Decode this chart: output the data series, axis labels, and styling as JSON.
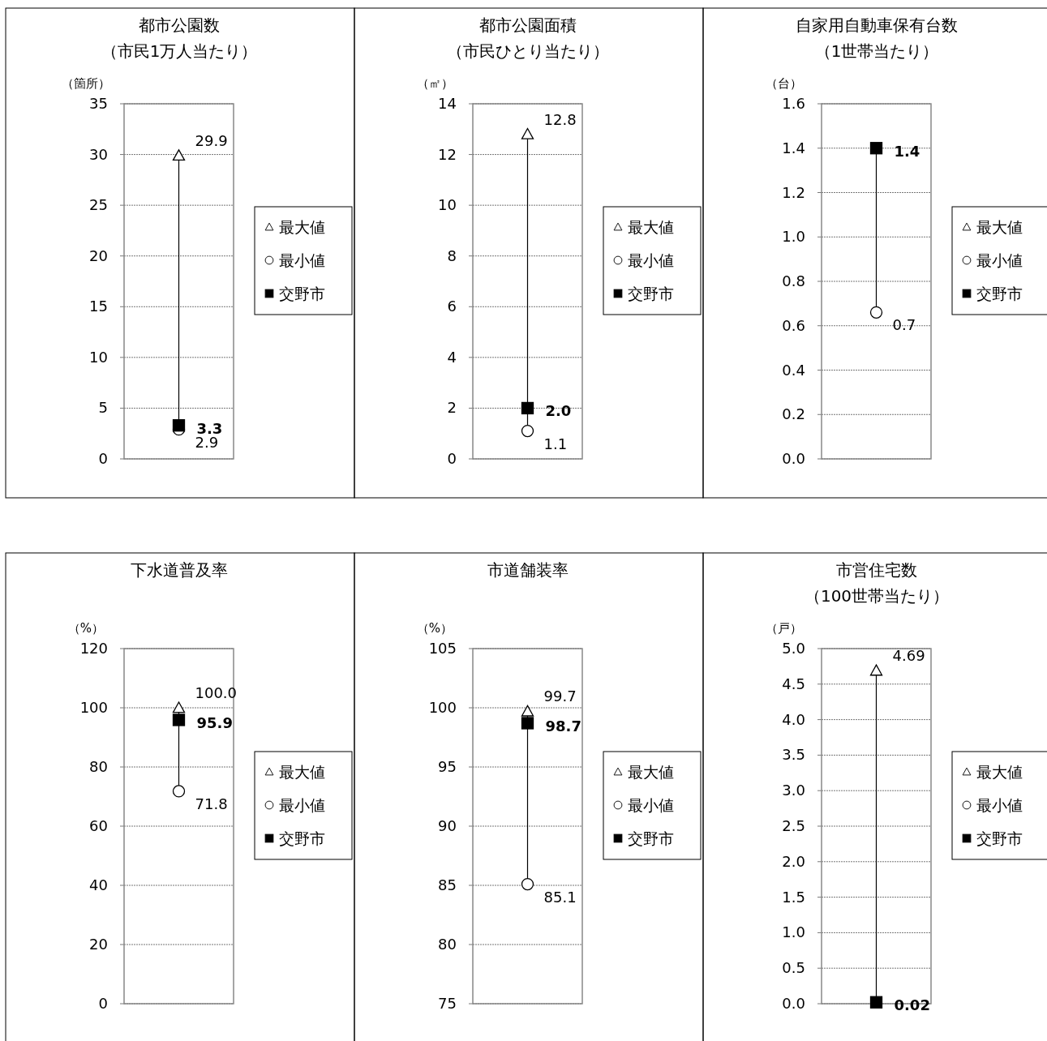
{
  "chart_data": [
    {
      "type": "scatter",
      "title": "都市公園数",
      "subtitle": "（市民1万人当たり）",
      "ylabel": "（箇所）",
      "categories": [
        null
      ],
      "ylim": [
        0,
        35
      ],
      "yticks": [
        0,
        5,
        10,
        15,
        20,
        25,
        30,
        35
      ],
      "grid": "y",
      "legend": "right",
      "series": [
        {
          "name": "最大値",
          "color": "#ffffff",
          "marker": "triangle",
          "values": [
            29.9
          ],
          "value_labels": [
            "29.9"
          ]
        },
        {
          "name": "最小値",
          "color": "#ffffff",
          "marker": "circle",
          "values": [
            2.9
          ],
          "value_labels": [
            "2.9"
          ]
        },
        {
          "name": "交野市",
          "color": "#000000",
          "marker": "square",
          "values": [
            3.3
          ],
          "value_labels": [
            "3.3"
          ]
        }
      ]
    },
    {
      "type": "scatter",
      "title": "都市公園面積",
      "subtitle": "（市民ひとり当たり）",
      "ylabel": "（㎡）",
      "categories": [
        null
      ],
      "ylim": [
        0,
        14
      ],
      "yticks": [
        0,
        2,
        4,
        6,
        8,
        10,
        12,
        14
      ],
      "grid": "y",
      "legend": "right",
      "series": [
        {
          "name": "最大値",
          "color": "#ffffff",
          "marker": "triangle",
          "values": [
            12.8
          ],
          "value_labels": [
            "12.8"
          ]
        },
        {
          "name": "最小値",
          "color": "#ffffff",
          "marker": "circle",
          "values": [
            1.1
          ],
          "value_labels": [
            "1.1"
          ]
        },
        {
          "name": "交野市",
          "color": "#000000",
          "marker": "square",
          "values": [
            2.0
          ],
          "value_labels": [
            "2.0"
          ]
        }
      ]
    },
    {
      "type": "scatter",
      "title": "自家用自動車保有台数",
      "subtitle": "（1世帯当たり）",
      "ylabel": "（台）",
      "categories": [
        null
      ],
      "ylim": [
        0,
        1.6
      ],
      "yticks": [
        {
          "value": 0,
          "label": "0.0"
        },
        0.2,
        0.4,
        0.6,
        0.8,
        {
          "value": 1,
          "label": "1.0"
        },
        1.2,
        1.4,
        1.6
      ],
      "grid": "y",
      "legend": "right",
      "series": [
        {
          "name": "最大値",
          "color": "#ffffff",
          "marker": "triangle",
          "values": [
            null
          ],
          "value_labels": [
            null
          ]
        },
        {
          "name": "最小値",
          "color": "#ffffff",
          "marker": "circle",
          "values": [
            0.66
          ],
          "value_labels": [
            "0.7"
          ]
        },
        {
          "name": "交野市",
          "color": "#000000",
          "marker": "square",
          "values": [
            1.4
          ],
          "value_labels": [
            "1.4"
          ]
        }
      ]
    },
    {
      "type": "scatter",
      "title": "下水道普及率",
      "ylabel": "（%）",
      "categories": [
        null
      ],
      "ylim": [
        0,
        120
      ],
      "yticks": [
        0,
        20,
        40,
        60,
        80,
        100,
        120
      ],
      "grid": "y",
      "legend": "right",
      "series": [
        {
          "name": "最大値",
          "color": "#ffffff",
          "marker": "triangle",
          "values": [
            100.0
          ],
          "value_labels": [
            "100.0"
          ]
        },
        {
          "name": "最小値",
          "color": "#ffffff",
          "marker": "circle",
          "values": [
            71.8
          ],
          "value_labels": [
            "71.8"
          ]
        },
        {
          "name": "交野市",
          "color": "#000000",
          "marker": "square",
          "values": [
            95.9
          ],
          "value_labels": [
            "95.9"
          ]
        }
      ]
    },
    {
      "type": "scatter",
      "title": "市道舗装率",
      "ylabel": "（%）",
      "categories": [
        null
      ],
      "ylim": [
        75,
        105
      ],
      "yticks": [
        75,
        80,
        85,
        90,
        95,
        100,
        105
      ],
      "grid": "y",
      "legend": "right",
      "series": [
        {
          "name": "最大値",
          "color": "#ffffff",
          "marker": "triangle",
          "values": [
            99.7
          ],
          "value_labels": [
            "99.7"
          ]
        },
        {
          "name": "最小値",
          "color": "#ffffff",
          "marker": "circle",
          "values": [
            85.1
          ],
          "value_labels": [
            "85.1"
          ]
        },
        {
          "name": "交野市",
          "color": "#000000",
          "marker": "square",
          "values": [
            98.7
          ],
          "value_labels": [
            "98.7"
          ]
        }
      ]
    },
    {
      "type": "scatter",
      "title": "市営住宅数",
      "subtitle": "（100世帯当たり）",
      "ylabel": "（戸）",
      "categories": [
        null
      ],
      "ylim": [
        0,
        5
      ],
      "yticks": [
        {
          "value": 0,
          "label": "0.0"
        },
        0.5,
        {
          "value": 1,
          "label": "1.0"
        },
        1.5,
        {
          "value": 2,
          "label": "2.0"
        },
        2.5,
        {
          "value": 3,
          "label": "3.0"
        },
        3.5,
        {
          "value": 4,
          "label": "4.0"
        },
        4.5,
        {
          "value": 5,
          "label": "5.0"
        }
      ],
      "grid": "y",
      "legend": "right",
      "series": [
        {
          "name": "最大値",
          "color": "#ffffff",
          "marker": "triangle",
          "values": [
            4.69
          ],
          "value_labels": [
            "4.69"
          ]
        },
        {
          "name": "最小値",
          "color": "#ffffff",
          "marker": "circle",
          "values": [
            null
          ],
          "value_labels": [
            null
          ]
        },
        {
          "name": "交野市",
          "color": "#000000",
          "marker": "square",
          "values": [
            0.02
          ],
          "value_labels": [
            "0.02"
          ]
        }
      ]
    }
  ]
}
